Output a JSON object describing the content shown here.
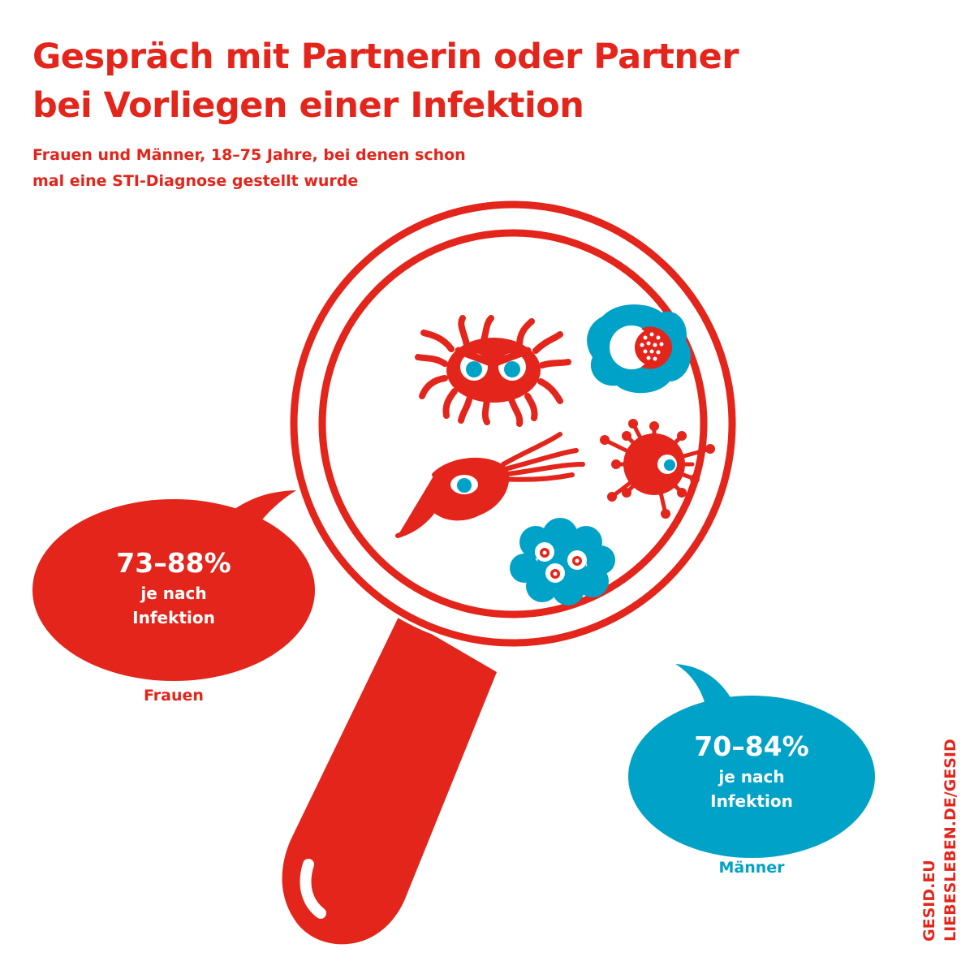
{
  "header": {
    "title_line1": "Gespräch mit Partnerin oder Partner",
    "title_line2": "bei Vorliegen einer Infektion",
    "subtitle_line1": "Frauen und Männer, 18–75 Jahre, bei denen schon",
    "subtitle_line2": "mal eine STI-Diagnose gestellt wurde"
  },
  "women": {
    "value": "73–88%",
    "detail_line1": "je nach",
    "detail_line2": "Infektion",
    "label": "Frauen"
  },
  "men": {
    "value": "70–84%",
    "detail_line1": "je nach",
    "detail_line2": "Infektion",
    "label": "Männer"
  },
  "footer": {
    "credit_line1": "GESID.EU",
    "credit_line2": "LIEBESLEBEN.DE/GESID"
  },
  "colors": {
    "red": "#e3251b",
    "blue": "#00a3c7"
  },
  "icons": [
    "magnifying-glass-icon",
    "bacterium-icon",
    "cell-icon",
    "trichomonas-icon",
    "virus-icon",
    "cell-cluster-icon",
    "speech-bubble-icon"
  ]
}
